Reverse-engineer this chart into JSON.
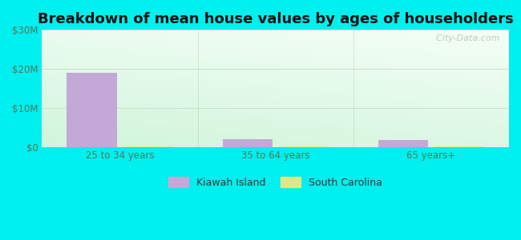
{
  "title": "Breakdown of mean house values by ages of householders",
  "categories": [
    "25 to 34 years",
    "35 to 64 years",
    "65 years+"
  ],
  "series": [
    {
      "name": "Kiawah Island",
      "values": [
        19000000,
        2000000,
        1700000
      ],
      "color": "#c4a8d8"
    },
    {
      "name": "South Carolina",
      "values": [
        80000,
        80000,
        90000
      ],
      "color": "#dde88a"
    }
  ],
  "ylim": [
    0,
    30000000
  ],
  "yticks": [
    0,
    10000000,
    20000000,
    30000000
  ],
  "ytick_labels": [
    "$0",
    "$10M",
    "$20M",
    "$30M"
  ],
  "background_color": "#00EFEF",
  "title_fontsize": 13,
  "bar_width": 0.32,
  "watermark": "  City-Data.com",
  "watermark_icon": "ⓘ",
  "gridline_color": "#ccddcc",
  "separator_color": "#aaccaa"
}
